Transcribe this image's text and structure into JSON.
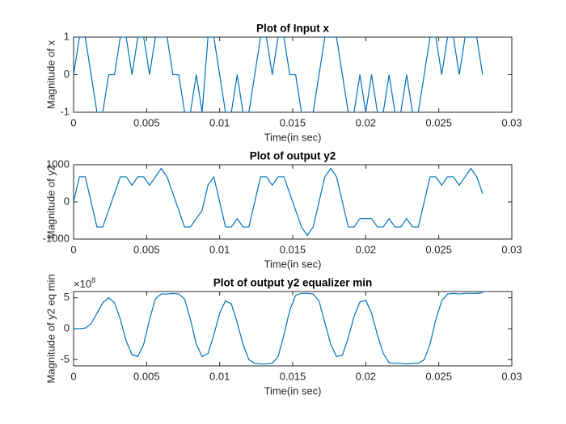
{
  "chart_data": [
    {
      "type": "line",
      "title": "Plot of Input x",
      "xlabel": "Time(in sec)",
      "ylabel": "Magnitude of x",
      "color": "#0072bd",
      "x": [
        0,
        0.0004,
        0.0008,
        0.0012,
        0.0016,
        0.002,
        0.0024,
        0.0028,
        0.0032,
        0.0036,
        0.004,
        0.0044,
        0.0048,
        0.0052,
        0.0056,
        0.006,
        0.0064,
        0.0068,
        0.0072,
        0.0076,
        0.008,
        0.0084,
        0.0088,
        0.0092,
        0.0096,
        0.01,
        0.0104,
        0.0108,
        0.0112,
        0.0116,
        0.012,
        0.0124,
        0.0128,
        0.0132,
        0.0136,
        0.014,
        0.0144,
        0.0148,
        0.0152,
        0.0156,
        0.016,
        0.0164,
        0.0168,
        0.0172,
        0.0176,
        0.018,
        0.0184,
        0.0188,
        0.0192,
        0.0196,
        0.02,
        0.0204,
        0.0208,
        0.0212,
        0.0216,
        0.022,
        0.0224,
        0.0228,
        0.0232,
        0.0236,
        0.024,
        0.0244,
        0.0248,
        0.0252,
        0.0256,
        0.026,
        0.0264,
        0.0268,
        0.0272,
        0.0276,
        0.028
      ],
      "values": [
        0,
        1,
        1,
        0,
        -1,
        -1,
        0,
        0,
        1,
        1,
        0,
        1,
        1,
        0,
        1,
        1,
        1,
        0,
        0,
        -1,
        -1,
        0,
        -1,
        1,
        1,
        0,
        -1,
        -1,
        0,
        -1,
        -1,
        0,
        1,
        1,
        0,
        1,
        1,
        0,
        0,
        -1,
        -1,
        -1,
        0,
        1,
        1,
        1,
        0,
        -1,
        -1,
        0,
        -1,
        0,
        -1,
        -1,
        0,
        -1,
        -1,
        0,
        -1,
        -1,
        0,
        1,
        1,
        0,
        1,
        1,
        0,
        1,
        1,
        1,
        0
      ],
      "xlim": [
        0,
        0.03
      ],
      "xticks": [
        0,
        0.005,
        0.01,
        0.015,
        0.02,
        0.025,
        0.03
      ],
      "ylim": [
        -1,
        1
      ],
      "yticks": [
        -1,
        0,
        1
      ]
    },
    {
      "type": "line",
      "title": "Plot of output y2",
      "xlabel": "Time(in sec)",
      "ylabel": "Magnitude of y2",
      "color": "#0072bd",
      "x": [
        0,
        0.0004,
        0.0008,
        0.0012,
        0.0016,
        0.002,
        0.0024,
        0.0028,
        0.0032,
        0.0036,
        0.004,
        0.0044,
        0.0048,
        0.0052,
        0.0056,
        0.006,
        0.0064,
        0.0068,
        0.0072,
        0.0076,
        0.008,
        0.0084,
        0.0088,
        0.0092,
        0.0096,
        0.01,
        0.0104,
        0.0108,
        0.0112,
        0.0116,
        0.012,
        0.0124,
        0.0128,
        0.0132,
        0.0136,
        0.014,
        0.0144,
        0.0148,
        0.0152,
        0.0156,
        0.016,
        0.0164,
        0.0168,
        0.0172,
        0.0176,
        0.018,
        0.0184,
        0.0188,
        0.0192,
        0.0196,
        0.02,
        0.0204,
        0.0208,
        0.0212,
        0.0216,
        0.022,
        0.0224,
        0.0228,
        0.0232,
        0.0236,
        0.024,
        0.0244,
        0.0248,
        0.0252,
        0.0256,
        0.026,
        0.0264,
        0.0268,
        0.0272,
        0.0276,
        0.028
      ],
      "values": [
        0,
        675,
        675,
        0,
        -675,
        -675,
        -225,
        225,
        675,
        675,
        450,
        675,
        675,
        450,
        675,
        900,
        675,
        225,
        -225,
        -675,
        -675,
        -450,
        -225,
        450,
        675,
        0,
        -675,
        -675,
        -450,
        -675,
        -675,
        0,
        675,
        675,
        450,
        675,
        675,
        225,
        -225,
        -675,
        -900,
        -675,
        0,
        675,
        900,
        675,
        0,
        -675,
        -675,
        -450,
        -450,
        -450,
        -675,
        -675,
        -450,
        -675,
        -675,
        -450,
        -675,
        -675,
        0,
        675,
        675,
        450,
        675,
        675,
        450,
        675,
        900,
        675,
        225
      ],
      "xlim": [
        0,
        0.03
      ],
      "xticks": [
        0,
        0.005,
        0.01,
        0.015,
        0.02,
        0.025,
        0.03
      ],
      "ylim": [
        -1000,
        1000
      ],
      "yticks": [
        -1000,
        0,
        1000
      ]
    },
    {
      "type": "line",
      "title": "Plot of output y2 equalizer min",
      "xlabel": "Time(in sec)",
      "ylabel": "Magnitude of y2 eq min",
      "color": "#0072bd",
      "y_scale_base": "×10",
      "y_scale_exponent": "8",
      "x": [
        0,
        0.0004,
        0.0008,
        0.0012,
        0.0016,
        0.002,
        0.0024,
        0.0028,
        0.0032,
        0.0036,
        0.004,
        0.0044,
        0.0048,
        0.0052,
        0.0056,
        0.006,
        0.0064,
        0.0068,
        0.0072,
        0.0076,
        0.008,
        0.0084,
        0.0088,
        0.0092,
        0.0096,
        0.01,
        0.0104,
        0.0108,
        0.0112,
        0.0116,
        0.012,
        0.0124,
        0.0128,
        0.0132,
        0.0136,
        0.014,
        0.0144,
        0.0148,
        0.0152,
        0.0156,
        0.016,
        0.0164,
        0.0168,
        0.0172,
        0.0176,
        0.018,
        0.0184,
        0.0188,
        0.0192,
        0.0196,
        0.02,
        0.0204,
        0.0208,
        0.0212,
        0.0216,
        0.022,
        0.0224,
        0.0228,
        0.0232,
        0.0236,
        0.024,
        0.0244,
        0.0248,
        0.0252,
        0.0256,
        0.026,
        0.0264,
        0.0268,
        0.0272,
        0.0276,
        0.028
      ],
      "values": [
        0,
        0,
        0.1,
        0.8,
        2.5,
        4.2,
        5,
        4.2,
        1.5,
        -2,
        -4.2,
        -4.5,
        -2.5,
        1.5,
        4.8,
        5.6,
        5.6,
        5.7,
        5.6,
        4.8,
        1.5,
        -2.5,
        -4.5,
        -4,
        -1,
        2.5,
        4.5,
        4,
        1,
        -2.5,
        -5,
        -5.6,
        -5.7,
        -5.7,
        -5.6,
        -4.5,
        -1,
        3,
        5.4,
        5.7,
        5.7,
        5.6,
        4.5,
        1,
        -2.5,
        -4.5,
        -4.3,
        -1.5,
        2,
        4.3,
        4.6,
        2.5,
        -1,
        -4,
        -5.5,
        -5.6,
        -5.6,
        -5.7,
        -5.6,
        -5.6,
        -5,
        -2.5,
        1.5,
        4.5,
        5.6,
        5.7,
        5.6,
        5.7,
        5.7,
        5.7,
        5.8
      ],
      "xlim": [
        0,
        0.03
      ],
      "xticks": [
        0,
        0.005,
        0.01,
        0.015,
        0.02,
        0.025,
        0.03
      ],
      "ylim": [
        -6,
        6
      ],
      "yticks": [
        -5,
        0,
        5
      ]
    }
  ]
}
